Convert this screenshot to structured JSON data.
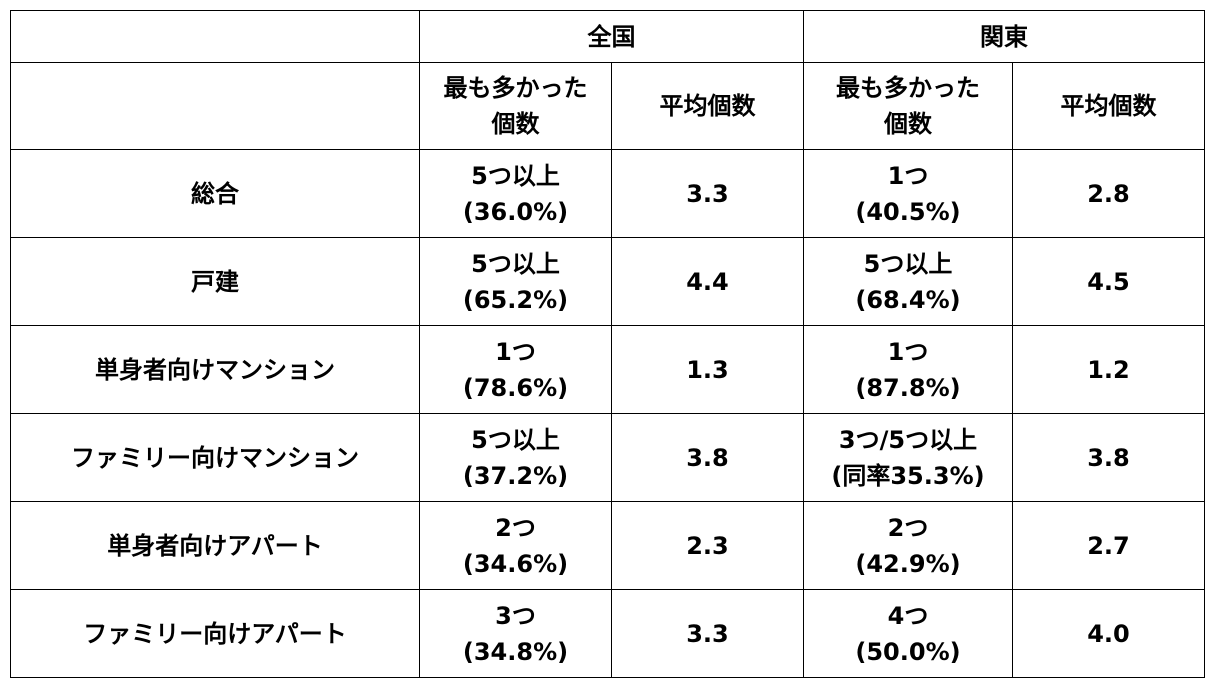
{
  "header": {
    "region_national": "全国",
    "region_kanto": "関東",
    "col_most_line1": "最も多かった",
    "col_most_line2": "個数",
    "col_average": "平均個数"
  },
  "rows": [
    {
      "label": "総合",
      "national_most_line1": "5つ以上",
      "national_most_line2": "(36.0%)",
      "national_avg": "3.3",
      "kanto_most_line1": "1つ",
      "kanto_most_line2": "(40.5%)",
      "kanto_avg": "2.8"
    },
    {
      "label": "戸建",
      "national_most_line1": "5つ以上",
      "national_most_line2": "(65.2%)",
      "national_avg": "4.4",
      "kanto_most_line1": "5つ以上",
      "kanto_most_line2": "(68.4%)",
      "kanto_avg": "4.5"
    },
    {
      "label": "単身者向けマンション",
      "national_most_line1": "1つ",
      "national_most_line2": "(78.6%)",
      "national_avg": "1.3",
      "kanto_most_line1": "1つ",
      "kanto_most_line2": "(87.8%)",
      "kanto_avg": "1.2"
    },
    {
      "label": "ファミリー向けマンション",
      "national_most_line1": "5つ以上",
      "national_most_line2": "(37.2%)",
      "national_avg": "3.8",
      "kanto_most_line1": "3つ/5つ以上",
      "kanto_most_line2": "(同率35.3%)",
      "kanto_avg": "3.8"
    },
    {
      "label": "単身者向けアパート",
      "national_most_line1": "2つ",
      "national_most_line2": "(34.6%)",
      "national_avg": "2.3",
      "kanto_most_line1": "2つ",
      "kanto_most_line2": "(42.9%)",
      "kanto_avg": "2.7"
    },
    {
      "label": "ファミリー向けアパート",
      "national_most_line1": "3つ",
      "national_most_line2": "(34.8%)",
      "national_avg": "3.3",
      "kanto_most_line1": "4つ",
      "kanto_most_line2": "(50.0%)",
      "kanto_avg": "4.0"
    }
  ]
}
